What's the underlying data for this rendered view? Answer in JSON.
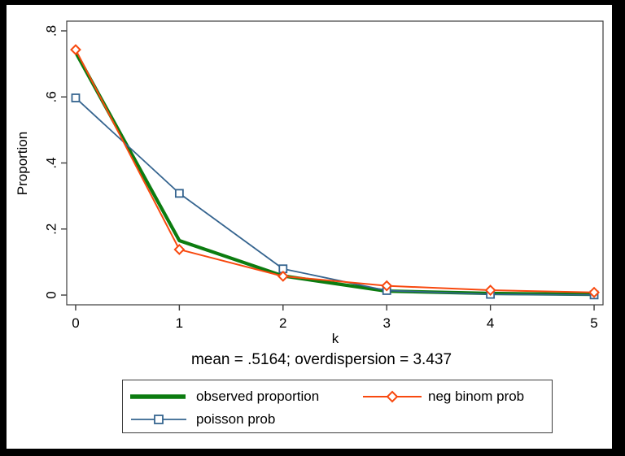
{
  "colors": {
    "observed": "#0c7c10",
    "neg_binom": "#f8490f",
    "poisson": "#35648f",
    "axis": "#3c3c3c",
    "background": "#ffffff",
    "frame": "#000000",
    "text": "#000000"
  },
  "chart_data": {
    "type": "line",
    "title": "",
    "xlabel": "k",
    "ylabel": "Proportion",
    "note": "mean = .5164; overdispersion = 3.437",
    "x": [
      0,
      1,
      2,
      3,
      4,
      5
    ],
    "xlim": [
      -0.086,
      5.086
    ],
    "ylim": [
      -0.0295,
      0.8295
    ],
    "xticks": {
      "values": [
        0,
        1,
        2,
        3,
        4,
        5
      ],
      "labels": [
        "0",
        "1",
        "2",
        "3",
        "4",
        "5"
      ]
    },
    "yticks": {
      "values": [
        0,
        0.2,
        0.4,
        0.6,
        0.8
      ],
      "labels": [
        "0",
        ".2",
        ".4",
        ".6",
        ".8"
      ]
    },
    "grid": false,
    "legend_position": "bottom",
    "series": [
      {
        "name": "observed proportion",
        "color": "#0c7c10",
        "line_width": 4.2,
        "marker": "none",
        "values": [
          0.735,
          0.165,
          0.058,
          0.012,
          0.005,
          0.002
        ]
      },
      {
        "name": "poisson prob",
        "color": "#35648f",
        "line_width": 1.8,
        "marker": "square",
        "values": [
          0.597,
          0.308,
          0.0795,
          0.0137,
          0.0022,
          0.0004
        ]
      },
      {
        "name": "neg binom prob",
        "color": "#f8490f",
        "line_width": 2,
        "marker": "diamond",
        "values": [
          0.743,
          0.138,
          0.057,
          0.028,
          0.0147,
          0.0081
        ]
      }
    ]
  },
  "legend": {
    "items": [
      {
        "label": "observed proportion",
        "series": 0
      },
      {
        "label": "neg binom prob",
        "series": 2
      },
      {
        "label": "poisson prob",
        "series": 1
      }
    ]
  }
}
